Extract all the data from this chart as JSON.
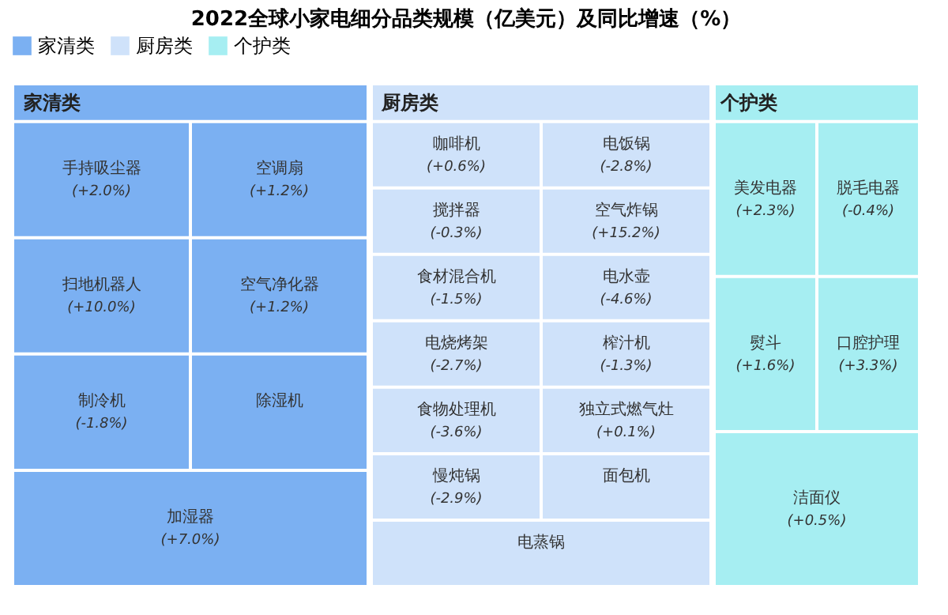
{
  "chart_data": {
    "type": "other",
    "title": "2022全球小家电细分品类规模（亿美元）及同比增速（%）",
    "legend": "top",
    "categories": [
      "手持吸尘器",
      "空调扇",
      "扫地机器人",
      "空气净化器",
      "制冷机",
      "除湿机",
      "加湿器",
      "咖啡机",
      "电饭锅",
      "搅拌器",
      "空气炸锅",
      "食材混合机",
      "电水壶",
      "电烧烤架",
      "榨汁机",
      "食物处理机",
      "独立式燃气灶",
      "慢炖锅",
      "面包机",
      "电蒸锅",
      "美发电器",
      "脱毛电器",
      "熨斗",
      "口腔护理",
      "洁面仪"
    ],
    "colors": [
      "#7bb0f2",
      "#7bb0f2",
      "#7bb0f2",
      "#7bb0f2",
      "#7bb0f2",
      "#7bb0f2",
      "#7bb0f2",
      "#cfe2fa",
      "#cfe2fa",
      "#cfe2fa",
      "#cfe2fa",
      "#cfe2fa",
      "#cfe2fa",
      "#cfe2fa",
      "#cfe2fa",
      "#cfe2fa",
      "#cfe2fa",
      "#cfe2fa",
      "#cfe2fa",
      "#cfe2fa",
      "#a6eef2",
      "#a6eef2",
      "#a6eef2",
      "#a6eef2",
      "#a6eef2"
    ],
    "series": [
      {
        "name": "家清类",
        "color": "#7bb0f2",
        "values": [
          2.0,
          1.2,
          10.0,
          1.2,
          -1.8,
          null,
          7.0,
          null,
          null,
          null,
          null,
          null,
          null,
          null,
          null,
          null,
          null,
          null,
          null,
          null,
          null,
          null,
          null,
          null,
          null
        ],
        "value_labels": [
          "(+2.0%)",
          "(+1.2%)",
          "(+10.0%)",
          "(+1.2%)",
          "(-1.8%)",
          null,
          "(+7.0%)",
          null,
          null,
          null,
          null,
          null,
          null,
          null,
          null,
          null,
          null,
          null,
          null,
          null,
          null,
          null,
          null,
          null,
          null
        ]
      },
      {
        "name": "厨房类",
        "color": "#cfe2fa",
        "values": [
          null,
          null,
          null,
          null,
          null,
          null,
          null,
          0.6,
          -2.8,
          -0.3,
          15.2,
          -1.5,
          -4.6,
          -2.7,
          -1.3,
          -3.6,
          0.1,
          -2.9,
          null,
          null,
          null,
          null,
          null,
          null,
          null
        ],
        "value_labels": [
          null,
          null,
          null,
          null,
          null,
          null,
          null,
          "(+0.6%)",
          "(-2.8%)",
          "(-0.3%)",
          "(+15.2%)",
          "(-1.5%)",
          "(-4.6%)",
          "(-2.7%)",
          "(-1.3%)",
          "(-3.6%)",
          "(+0.1%)",
          "(-2.9%)",
          null,
          null,
          null,
          null,
          null,
          null,
          null
        ]
      },
      {
        "name": "个护类",
        "color": "#a6eef2",
        "values": [
          null,
          null,
          null,
          null,
          null,
          null,
          null,
          null,
          null,
          null,
          null,
          null,
          null,
          null,
          null,
          null,
          null,
          null,
          null,
          null,
          2.3,
          -0.4,
          1.6,
          3.3,
          0.5
        ],
        "value_labels": [
          null,
          null,
          null,
          null,
          null,
          null,
          null,
          null,
          null,
          null,
          null,
          null,
          null,
          null,
          null,
          null,
          null,
          null,
          null,
          null,
          "(+2.3%)",
          "(-0.4%)",
          "(+1.6%)",
          "(+3.3%)",
          "(+0.5%)"
        ]
      }
    ]
  }
}
